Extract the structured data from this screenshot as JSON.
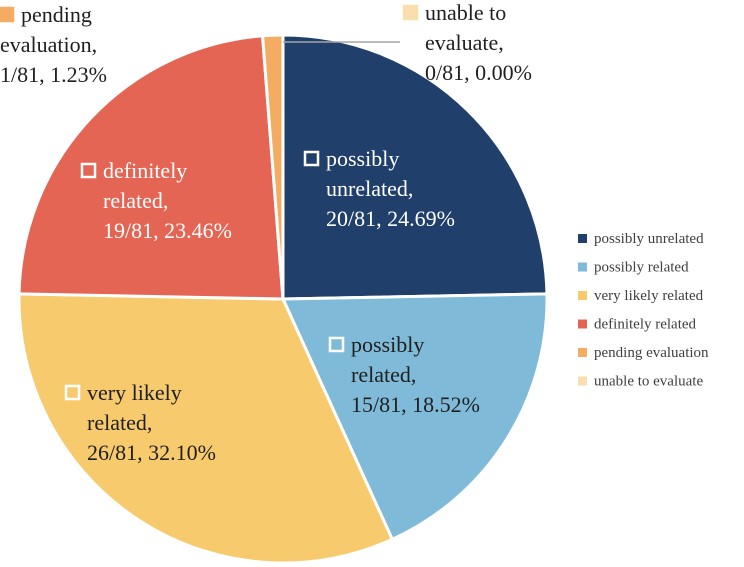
{
  "chart_data": {
    "type": "pie",
    "start_angle_deg": 0,
    "direction": "clockwise",
    "border_color": "#ffffff",
    "legend_position": "right",
    "total": 81,
    "slices": [
      {
        "name": "possibly unrelated",
        "count": 20,
        "percent": 24.69,
        "color": "#203f6b",
        "label_lines": [
          "possibly",
          "unrelated,",
          "20/81, 24.69%"
        ],
        "label_color": "#ffffff",
        "marker": true
      },
      {
        "name": "possibly related",
        "count": 15,
        "percent": 18.52,
        "color": "#7fbad8",
        "label_lines": [
          "possibly",
          "related,",
          "15/81, 18.52%"
        ],
        "label_color": "#1f1f1f",
        "marker": true
      },
      {
        "name": "very likely related",
        "count": 26,
        "percent": 32.1,
        "color": "#f7ca6e",
        "label_lines": [
          "very likely",
          "related,",
          "26/81, 32.10%"
        ],
        "label_color": "#1f1f1f",
        "marker": true
      },
      {
        "name": "definitely related",
        "count": 19,
        "percent": 23.46,
        "color": "#e46553",
        "label_lines": [
          "definitely",
          "related,",
          "19/81, 23.46%"
        ],
        "label_color": "#ffffff",
        "marker": true
      },
      {
        "name": "pending evaluation",
        "count": 1,
        "percent": 1.23,
        "color": "#f4ac63",
        "label_lines": [
          "pending",
          "evaluation,",
          "1/81, 1.23%"
        ],
        "label_color": "#1f1f1f",
        "marker": true
      },
      {
        "name": "unable to evaluate",
        "count": 0,
        "percent": 0.0,
        "color": "#f9dfae",
        "label_lines": [
          "unable to",
          "evaluate,",
          "0/81, 0.00%"
        ],
        "label_color": "#1f1f1f",
        "marker": true
      }
    ],
    "legend": [
      {
        "label": "possibly unrelated",
        "color": "#203f6b"
      },
      {
        "label": "possibly related",
        "color": "#7fbad8"
      },
      {
        "label": "very likely related",
        "color": "#f7ca6e"
      },
      {
        "label": "definitely related",
        "color": "#e46553"
      },
      {
        "label": "pending evaluation",
        "color": "#f4ac63"
      },
      {
        "label": "unable to evaluate",
        "color": "#f9dfae"
      }
    ]
  }
}
